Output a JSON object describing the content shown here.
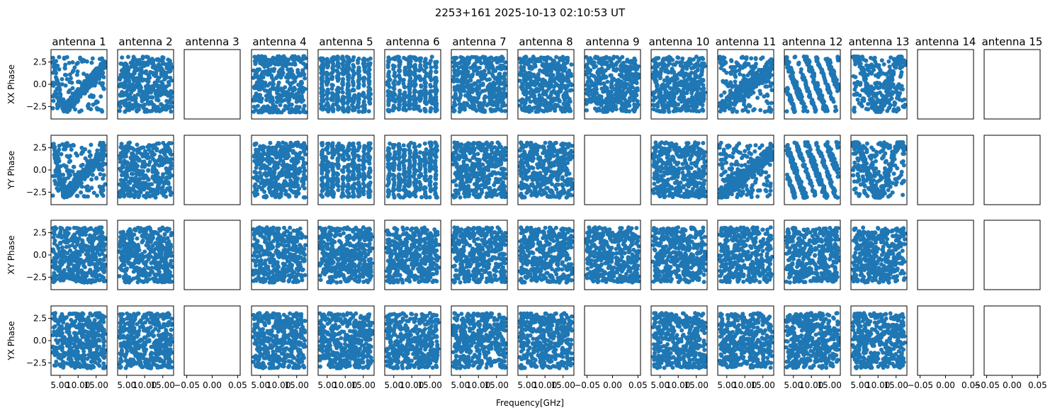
{
  "chart_data": {
    "type": "scatter",
    "title": "2253+161 2025-10-13 02:10:53 UT",
    "xlabel": "Frequency[GHz]",
    "columns": [
      "antenna 1",
      "antenna 2",
      "antenna 3",
      "antenna 4",
      "antenna 5",
      "antenna 6",
      "antenna 7",
      "antenna 8",
      "antenna 9",
      "antenna 10",
      "antenna 11",
      "antenna 12",
      "antenna 13",
      "antenna 14",
      "antenna 15"
    ],
    "rows": [
      "XX Phase",
      "YY Phase",
      "XY Phase",
      "YX Phase"
    ],
    "ylim": [
      -3.9,
      3.9
    ],
    "yticks": [
      "2.5",
      "0.0",
      "−2.5"
    ],
    "xlim_data": [
      2.5,
      18.0
    ],
    "xticks_data": [
      "5.00",
      "10.00",
      "15.00"
    ],
    "xlim_empty": [
      -0.055,
      0.055
    ],
    "xticks_empty": [
      "−0.05",
      "0.00",
      "0.05"
    ],
    "point_color": "#1f77b4",
    "points_per_panel": 420,
    "grid": false,
    "has_data": [
      [
        true,
        true,
        false,
        true,
        true,
        true,
        true,
        true,
        true,
        true,
        true,
        true,
        true,
        false,
        false
      ],
      [
        true,
        true,
        false,
        true,
        true,
        true,
        true,
        true,
        false,
        true,
        true,
        true,
        true,
        false,
        false
      ],
      [
        true,
        true,
        false,
        true,
        true,
        true,
        true,
        true,
        true,
        true,
        true,
        true,
        true,
        false,
        false
      ],
      [
        true,
        true,
        false,
        true,
        true,
        true,
        true,
        true,
        false,
        true,
        true,
        true,
        true,
        false,
        false
      ]
    ],
    "patterns": [
      [
        "vshape",
        "random",
        "none",
        "bands",
        "stripes",
        "stripes",
        "random",
        "random",
        "random",
        "random",
        "diag",
        "diag2",
        "wave",
        "none",
        "none"
      ],
      [
        "vshape",
        "random",
        "none",
        "random",
        "stripes",
        "stripes",
        "random",
        "random",
        "none",
        "random",
        "diag",
        "diag2",
        "wave",
        "none",
        "none"
      ],
      [
        "random",
        "random",
        "none",
        "random",
        "random",
        "random",
        "random",
        "random",
        "random",
        "random",
        "random",
        "random",
        "random",
        "none",
        "none"
      ],
      [
        "random",
        "random",
        "none",
        "random",
        "random",
        "random",
        "random",
        "random",
        "none",
        "random",
        "random",
        "random",
        "random",
        "none",
        "none"
      ]
    ]
  }
}
